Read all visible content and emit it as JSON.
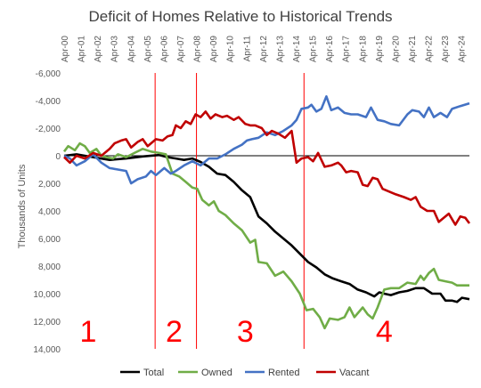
{
  "chart_data": {
    "type": "line",
    "title": "Deficit of Homes Relative to Historical Trends",
    "ylabel": "Thousands of Units",
    "xlabel": "",
    "ylim": [
      -6000,
      14000
    ],
    "y_inverted": true,
    "y_ticks": [
      -6000,
      -4000,
      -2000,
      0,
      2000,
      4000,
      6000,
      8000,
      10000,
      12000,
      14000
    ],
    "y_tick_labels": [
      "-6,000",
      "-4,000",
      "-2,000",
      "0",
      "2,000",
      "4,000",
      "6,000",
      "8,000",
      "10,000",
      "12,000",
      "14,000"
    ],
    "x_range": [
      2000.25,
      2024.75
    ],
    "x_tick_labels": [
      "Apr-00",
      "Apr-01",
      "Apr-02",
      "Apr-03",
      "Apr-04",
      "Apr-05",
      "Apr-06",
      "Apr-07",
      "Apr-08",
      "Apr-09",
      "Apr-10",
      "Apr-11",
      "Apr-12",
      "Apr-13",
      "Apr-14",
      "Apr-15",
      "Apr-16",
      "Apr-17",
      "Apr-18",
      "Apr-19",
      "Apr-20",
      "Apr-21",
      "Apr-22",
      "Apr-23",
      "Apr-24"
    ],
    "x_tick_years": [
      2000.25,
      2001.25,
      2002.25,
      2003.25,
      2004.25,
      2005.25,
      2006.25,
      2007.25,
      2008.25,
      2009.25,
      2010.25,
      2011.25,
      2012.25,
      2013.25,
      2014.25,
      2015.25,
      2016.25,
      2017.25,
      2018.25,
      2019.25,
      2020.25,
      2021.25,
      2022.25,
      2023.25,
      2024.25
    ],
    "legend_position": "bottom",
    "phase_dividers": [
      2005.75,
      2008.25,
      2014.75
    ],
    "phase_labels": [
      {
        "text": "1",
        "x": 2001.7
      },
      {
        "text": "2",
        "x": 2006.9
      },
      {
        "text": "3",
        "x": 2011.2
      },
      {
        "text": "4",
        "x": 2019.6
      }
    ],
    "series": [
      {
        "name": "Total",
        "color": "#000000",
        "points": [
          [
            2000.25,
            0
          ],
          [
            2001.0,
            -100
          ],
          [
            2002.0,
            100
          ],
          [
            2003.0,
            300
          ],
          [
            2004.0,
            200
          ],
          [
            2005.0,
            50
          ],
          [
            2006.0,
            -50
          ],
          [
            2006.5,
            100
          ],
          [
            2007.0,
            200
          ],
          [
            2007.5,
            300
          ],
          [
            2008.0,
            200
          ],
          [
            2008.5,
            450
          ],
          [
            2009.0,
            800
          ],
          [
            2009.5,
            1300
          ],
          [
            2010.0,
            1400
          ],
          [
            2010.5,
            1900
          ],
          [
            2011.0,
            2500
          ],
          [
            2011.5,
            3000
          ],
          [
            2012.0,
            4400
          ],
          [
            2012.5,
            4900
          ],
          [
            2013.0,
            5500
          ],
          [
            2013.5,
            6000
          ],
          [
            2014.0,
            6500
          ],
          [
            2014.5,
            7100
          ],
          [
            2015.0,
            7700
          ],
          [
            2015.5,
            8100
          ],
          [
            2016.0,
            8600
          ],
          [
            2016.5,
            8900
          ],
          [
            2017.0,
            9100
          ],
          [
            2017.5,
            9300
          ],
          [
            2018.0,
            9700
          ],
          [
            2018.5,
            9900
          ],
          [
            2019.0,
            10200
          ],
          [
            2019.3,
            9900
          ],
          [
            2019.6,
            10000
          ],
          [
            2020.0,
            10100
          ],
          [
            2020.5,
            9900
          ],
          [
            2021.0,
            9800
          ],
          [
            2021.5,
            9600
          ],
          [
            2022.0,
            9600
          ],
          [
            2022.5,
            10000
          ],
          [
            2023.0,
            10000
          ],
          [
            2023.3,
            10500
          ],
          [
            2023.7,
            10500
          ],
          [
            2024.0,
            10600
          ],
          [
            2024.3,
            10300
          ],
          [
            2024.75,
            10400
          ]
        ]
      },
      {
        "name": "Owned",
        "color": "#70ad47",
        "points": [
          [
            2000.25,
            -300
          ],
          [
            2000.5,
            -700
          ],
          [
            2000.9,
            -400
          ],
          [
            2001.2,
            -900
          ],
          [
            2001.5,
            -700
          ],
          [
            2001.8,
            -200
          ],
          [
            2002.2,
            -500
          ],
          [
            2002.5,
            0
          ],
          [
            2002.8,
            100
          ],
          [
            2003.2,
            200
          ],
          [
            2003.5,
            -100
          ],
          [
            2004.0,
            100
          ],
          [
            2004.5,
            -200
          ],
          [
            2005.0,
            -500
          ],
          [
            2005.5,
            -300
          ],
          [
            2006.0,
            -200
          ],
          [
            2006.4,
            -100
          ],
          [
            2006.8,
            1300
          ],
          [
            2007.2,
            1500
          ],
          [
            2007.6,
            1900
          ],
          [
            2008.0,
            2300
          ],
          [
            2008.3,
            2400
          ],
          [
            2008.6,
            3200
          ],
          [
            2009.0,
            3600
          ],
          [
            2009.3,
            3300
          ],
          [
            2009.6,
            4000
          ],
          [
            2010.0,
            4300
          ],
          [
            2010.5,
            4900
          ],
          [
            2011.0,
            5400
          ],
          [
            2011.5,
            6300
          ],
          [
            2011.8,
            6100
          ],
          [
            2012.0,
            7700
          ],
          [
            2012.5,
            7800
          ],
          [
            2013.0,
            8700
          ],
          [
            2013.5,
            8400
          ],
          [
            2014.0,
            9100
          ],
          [
            2014.5,
            10000
          ],
          [
            2014.9,
            11200
          ],
          [
            2015.3,
            11100
          ],
          [
            2015.7,
            11700
          ],
          [
            2016.0,
            12500
          ],
          [
            2016.3,
            11800
          ],
          [
            2016.8,
            11900
          ],
          [
            2017.2,
            11700
          ],
          [
            2017.5,
            11000
          ],
          [
            2017.8,
            11700
          ],
          [
            2018.3,
            11000
          ],
          [
            2018.6,
            11500
          ],
          [
            2018.9,
            11800
          ],
          [
            2019.2,
            11000
          ],
          [
            2019.6,
            9700
          ],
          [
            2020.0,
            9600
          ],
          [
            2020.5,
            9600
          ],
          [
            2021.0,
            9200
          ],
          [
            2021.5,
            9300
          ],
          [
            2021.8,
            8700
          ],
          [
            2022.0,
            9000
          ],
          [
            2022.3,
            8500
          ],
          [
            2022.6,
            8200
          ],
          [
            2022.9,
            9000
          ],
          [
            2023.3,
            9100
          ],
          [
            2023.7,
            9200
          ],
          [
            2024.0,
            9400
          ],
          [
            2024.75,
            9400
          ]
        ]
      },
      {
        "name": "Rented",
        "color": "#4472c4",
        "points": [
          [
            2000.25,
            0
          ],
          [
            2000.6,
            200
          ],
          [
            2001.0,
            700
          ],
          [
            2001.5,
            400
          ],
          [
            2002.0,
            -100
          ],
          [
            2002.5,
            500
          ],
          [
            2003.0,
            900
          ],
          [
            2003.5,
            1000
          ],
          [
            2004.0,
            1100
          ],
          [
            2004.3,
            2000
          ],
          [
            2004.7,
            1700
          ],
          [
            2005.2,
            1500
          ],
          [
            2005.5,
            1100
          ],
          [
            2005.8,
            1400
          ],
          [
            2006.3,
            900
          ],
          [
            2006.7,
            1300
          ],
          [
            2007.0,
            1100
          ],
          [
            2007.5,
            700
          ],
          [
            2008.0,
            400
          ],
          [
            2008.5,
            700
          ],
          [
            2009.0,
            200
          ],
          [
            2009.5,
            200
          ],
          [
            2010.0,
            -100
          ],
          [
            2010.5,
            -500
          ],
          [
            2011.0,
            -800
          ],
          [
            2011.3,
            -1100
          ],
          [
            2011.6,
            -1200
          ],
          [
            2012.0,
            -1300
          ],
          [
            2012.5,
            -1700
          ],
          [
            2013.0,
            -1500
          ],
          [
            2013.5,
            -1800
          ],
          [
            2014.0,
            -2200
          ],
          [
            2014.3,
            -2600
          ],
          [
            2014.6,
            -3400
          ],
          [
            2015.0,
            -3500
          ],
          [
            2015.2,
            -3700
          ],
          [
            2015.5,
            -3200
          ],
          [
            2015.8,
            -3400
          ],
          [
            2016.1,
            -4300
          ],
          [
            2016.4,
            -3300
          ],
          [
            2016.8,
            -3500
          ],
          [
            2017.2,
            -3100
          ],
          [
            2017.6,
            -3000
          ],
          [
            2018.0,
            -3000
          ],
          [
            2018.5,
            -2800
          ],
          [
            2018.8,
            -3500
          ],
          [
            2019.2,
            -2600
          ],
          [
            2019.6,
            -2500
          ],
          [
            2020.0,
            -2300
          ],
          [
            2020.5,
            -2200
          ],
          [
            2021.0,
            -3000
          ],
          [
            2021.3,
            -3300
          ],
          [
            2021.7,
            -3200
          ],
          [
            2022.0,
            -2800
          ],
          [
            2022.3,
            -3500
          ],
          [
            2022.6,
            -2800
          ],
          [
            2023.0,
            -3100
          ],
          [
            2023.4,
            -2800
          ],
          [
            2023.7,
            -3400
          ],
          [
            2024.2,
            -3600
          ],
          [
            2024.75,
            -3800
          ]
        ]
      },
      {
        "name": "Vacant",
        "color": "#c00000",
        "points": [
          [
            2000.25,
            100
          ],
          [
            2000.6,
            500
          ],
          [
            2001.0,
            0
          ],
          [
            2001.5,
            200
          ],
          [
            2002.0,
            -200
          ],
          [
            2002.5,
            0
          ],
          [
            2003.0,
            -500
          ],
          [
            2003.3,
            -900
          ],
          [
            2003.7,
            -1100
          ],
          [
            2004.0,
            -1200
          ],
          [
            2004.3,
            -600
          ],
          [
            2004.7,
            -1000
          ],
          [
            2005.0,
            -1200
          ],
          [
            2005.3,
            -700
          ],
          [
            2005.8,
            -1200
          ],
          [
            2006.2,
            -1100
          ],
          [
            2006.5,
            -1400
          ],
          [
            2006.8,
            -1500
          ],
          [
            2007.0,
            -2200
          ],
          [
            2007.3,
            -2000
          ],
          [
            2007.6,
            -2500
          ],
          [
            2007.9,
            -2300
          ],
          [
            2008.2,
            -3000
          ],
          [
            2008.5,
            -2800
          ],
          [
            2008.8,
            -3200
          ],
          [
            2009.1,
            -2700
          ],
          [
            2009.4,
            -3000
          ],
          [
            2009.8,
            -2800
          ],
          [
            2010.1,
            -2900
          ],
          [
            2010.5,
            -2600
          ],
          [
            2010.8,
            -2800
          ],
          [
            2011.2,
            -2300
          ],
          [
            2011.5,
            -2200
          ],
          [
            2011.8,
            -2200
          ],
          [
            2012.2,
            -2000
          ],
          [
            2012.5,
            -1500
          ],
          [
            2012.8,
            -1800
          ],
          [
            2013.2,
            -1600
          ],
          [
            2013.6,
            -1300
          ],
          [
            2014.0,
            -1800
          ],
          [
            2014.3,
            500
          ],
          [
            2014.6,
            200
          ],
          [
            2015.0,
            100
          ],
          [
            2015.3,
            400
          ],
          [
            2015.6,
            -200
          ],
          [
            2016.0,
            800
          ],
          [
            2016.4,
            700
          ],
          [
            2016.8,
            500
          ],
          [
            2017.0,
            700
          ],
          [
            2017.3,
            1200
          ],
          [
            2017.6,
            1100
          ],
          [
            2018.0,
            1200
          ],
          [
            2018.3,
            2100
          ],
          [
            2018.6,
            2200
          ],
          [
            2018.9,
            1600
          ],
          [
            2019.2,
            1700
          ],
          [
            2019.5,
            2400
          ],
          [
            2019.9,
            2600
          ],
          [
            2020.3,
            2800
          ],
          [
            2020.8,
            3000
          ],
          [
            2021.2,
            3200
          ],
          [
            2021.5,
            3000
          ],
          [
            2021.8,
            3700
          ],
          [
            2022.2,
            4000
          ],
          [
            2022.6,
            4000
          ],
          [
            2022.9,
            4800
          ],
          [
            2023.2,
            4500
          ],
          [
            2023.5,
            4200
          ],
          [
            2023.9,
            5000
          ],
          [
            2024.2,
            4400
          ],
          [
            2024.5,
            4500
          ],
          [
            2024.75,
            4900
          ]
        ]
      }
    ]
  }
}
